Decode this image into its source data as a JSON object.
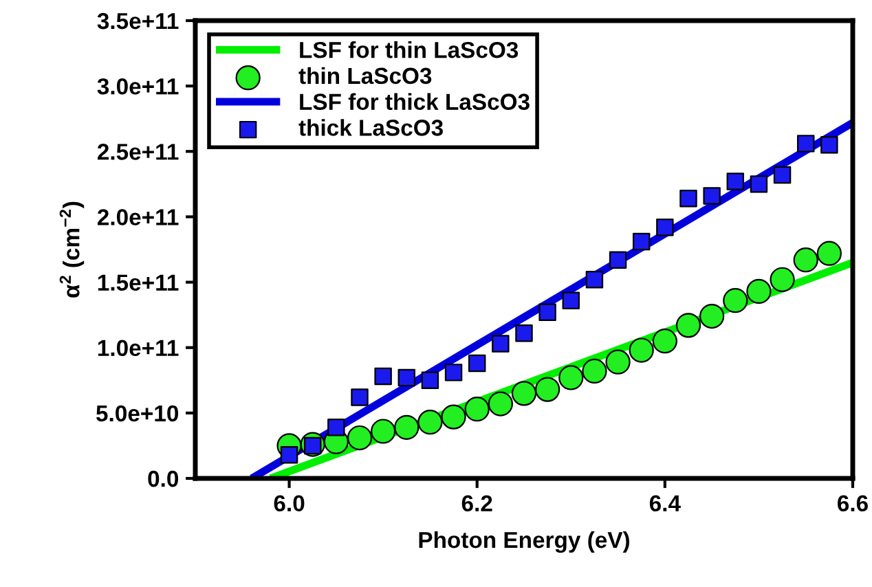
{
  "chart_data": {
    "type": "scatter",
    "xlabel": "Photon Energy (eV)",
    "ylabel": "α$^{2}$ (cm$^{−2}$)",
    "xlim": [
      5.9,
      6.6
    ],
    "ylim": [
      0,
      350000000000.0
    ],
    "xticks": [
      {
        "value": 6.0,
        "label": "6.0"
      },
      {
        "value": 6.2,
        "label": "6.2"
      },
      {
        "value": 6.4,
        "label": "6.4"
      },
      {
        "value": 6.6,
        "label": "6.6"
      }
    ],
    "yticks": [
      {
        "value": 0,
        "label": "0.0"
      },
      {
        "value": 50000000000.0,
        "label": "5.0e+10"
      },
      {
        "value": 100000000000.0,
        "label": "1.0e+11"
      },
      {
        "value": 150000000000.0,
        "label": "1.5e+11"
      },
      {
        "value": 200000000000.0,
        "label": "2.0e+11"
      },
      {
        "value": 250000000000.0,
        "label": "2.5e+11"
      },
      {
        "value": 300000000000.0,
        "label": "3.0e+11"
      },
      {
        "value": 350000000000.0,
        "label": "3.5e+11"
      }
    ],
    "grid": false,
    "legend": "top left",
    "series": [
      {
        "name": "LSF for thin LaScO3",
        "type": "line",
        "color": "#00ee00",
        "marker": "none",
        "x": [
          5.98,
          6.6
        ],
        "values": [
          0,
          165000000000.0
        ]
      },
      {
        "name": "thin LaScO3",
        "color": "#22ee22",
        "marker": "circle",
        "x": [
          6.0,
          6.025,
          6.05,
          6.075,
          6.1,
          6.125,
          6.15,
          6.175,
          6.2,
          6.225,
          6.25,
          6.275,
          6.3,
          6.325,
          6.35,
          6.375,
          6.4,
          6.425,
          6.45,
          6.475,
          6.5,
          6.525,
          6.55,
          6.575
        ],
        "values": [
          25000000000.0,
          26000000000.0,
          28000000000.0,
          31000000000.0,
          36000000000.0,
          39000000000.0,
          43000000000.0,
          47000000000.0,
          53000000000.0,
          57000000000.0,
          65000000000.0,
          68000000000.0,
          77000000000.0,
          82000000000.0,
          89000000000.0,
          98000000000.0,
          105000000000.0,
          117000000000.0,
          124000000000.0,
          136000000000.0,
          143000000000.0,
          152000000000.0,
          167000000000.0,
          172000000000.0
        ]
      },
      {
        "name": "LSF for thick LaScO3",
        "type": "line",
        "color": "#0000dd",
        "marker": "none",
        "x": [
          5.96,
          6.6
        ],
        "values": [
          0,
          272000000000.0
        ]
      },
      {
        "name": "thick LaScO3",
        "color": "#1a1aee",
        "marker": "square",
        "x": [
          6.0,
          6.025,
          6.05,
          6.075,
          6.1,
          6.125,
          6.15,
          6.175,
          6.2,
          6.225,
          6.25,
          6.275,
          6.3,
          6.325,
          6.35,
          6.375,
          6.4,
          6.425,
          6.45,
          6.475,
          6.5,
          6.525,
          6.55,
          6.575
        ],
        "values": [
          18000000000.0,
          25000000000.0,
          39000000000.0,
          62000000000.0,
          78000000000.0,
          77000000000.0,
          75000000000.0,
          81000000000.0,
          88000000000.0,
          103000000000.0,
          111000000000.0,
          127000000000.0,
          136000000000.0,
          152000000000.0,
          167000000000.0,
          181000000000.0,
          192000000000.0,
          214000000000.0,
          216000000000.0,
          227000000000.0,
          225000000000.0,
          232000000000.0,
          256000000000.0,
          255000000000.0
        ]
      }
    ]
  }
}
